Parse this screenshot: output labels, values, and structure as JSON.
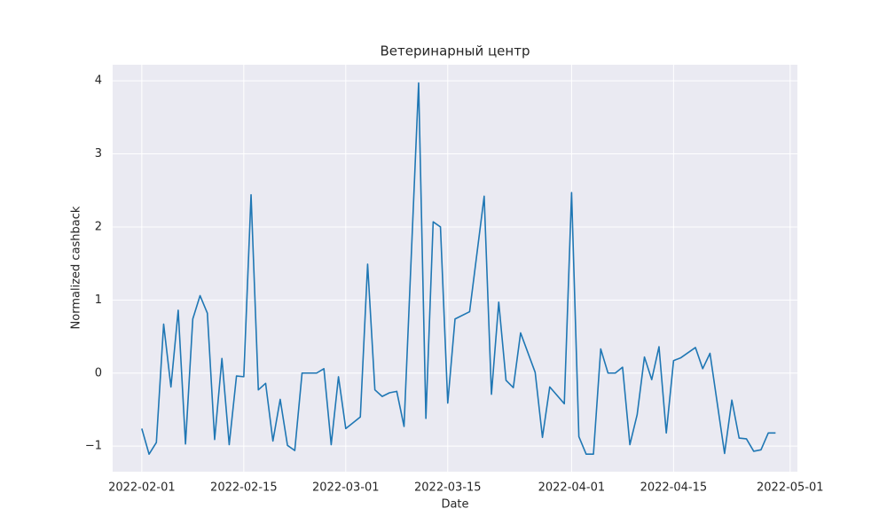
{
  "chart_data": {
    "type": "line",
    "title": "Ветеринарный центр",
    "xlabel": "Date",
    "ylabel": "Normalized cashback",
    "x": [
      "2022-02-01",
      "2022-02-02",
      "2022-02-03",
      "2022-02-04",
      "2022-02-05",
      "2022-02-06",
      "2022-02-07",
      "2022-02-08",
      "2022-02-09",
      "2022-02-10",
      "2022-02-11",
      "2022-02-12",
      "2022-02-13",
      "2022-02-14",
      "2022-02-15",
      "2022-02-16",
      "2022-02-17",
      "2022-02-18",
      "2022-02-19",
      "2022-02-20",
      "2022-02-21",
      "2022-02-22",
      "2022-02-23",
      "2022-02-24",
      "2022-02-25",
      "2022-02-26",
      "2022-02-27",
      "2022-02-28",
      "2022-03-01",
      "2022-03-03",
      "2022-03-04",
      "2022-03-05",
      "2022-03-06",
      "2022-03-07",
      "2022-03-08",
      "2022-03-09",
      "2022-03-11",
      "2022-03-12",
      "2022-03-13",
      "2022-03-14",
      "2022-03-15",
      "2022-03-16",
      "2022-03-18",
      "2022-03-20",
      "2022-03-21",
      "2022-03-22",
      "2022-03-23",
      "2022-03-24",
      "2022-03-25",
      "2022-03-27",
      "2022-03-28",
      "2022-03-29",
      "2022-03-31",
      "2022-04-01",
      "2022-04-02",
      "2022-04-03",
      "2022-04-04",
      "2022-04-05",
      "2022-04-06",
      "2022-04-07",
      "2022-04-08",
      "2022-04-09",
      "2022-04-10",
      "2022-04-11",
      "2022-04-12",
      "2022-04-13",
      "2022-04-14",
      "2022-04-15",
      "2022-04-16",
      "2022-04-18",
      "2022-04-19",
      "2022-04-20",
      "2022-04-22",
      "2022-04-23",
      "2022-04-24",
      "2022-04-25",
      "2022-04-26",
      "2022-04-27",
      "2022-04-28",
      "2022-04-29"
    ],
    "series": [
      {
        "name": "Normalized cashback",
        "color": "#1f77b4",
        "values": [
          -0.76,
          -1.11,
          -0.95,
          0.67,
          -0.19,
          0.86,
          -0.97,
          0.74,
          1.06,
          0.82,
          -0.91,
          0.2,
          -0.98,
          -0.04,
          -0.05,
          2.44,
          -0.23,
          -0.14,
          -0.93,
          -0.36,
          -0.99,
          -1.06,
          0.0,
          0.0,
          0.0,
          0.06,
          -0.98,
          -0.05,
          -0.76,
          -0.6,
          1.49,
          -0.23,
          -0.32,
          -0.27,
          -0.25,
          -0.73,
          3.97,
          -0.62,
          2.07,
          2.0,
          -0.41,
          0.74,
          0.84,
          2.42,
          -0.29,
          0.97,
          -0.1,
          -0.2,
          0.55,
          0.01,
          -0.88,
          -0.19,
          -0.42,
          2.47,
          -0.87,
          -1.11,
          -1.11,
          0.33,
          0.0,
          0.0,
          0.08,
          -0.98,
          -0.57,
          0.22,
          -0.09,
          0.36,
          -0.82,
          0.17,
          0.21,
          0.35,
          0.06,
          0.27,
          -1.1,
          -0.37,
          -0.89,
          -0.9,
          -1.07,
          -1.05,
          -0.82,
          -0.82
        ]
      }
    ],
    "xlim": [
      "2022-01-28",
      "2022-05-02"
    ],
    "xticks": [
      "2022-02-01",
      "2022-02-15",
      "2022-03-01",
      "2022-03-15",
      "2022-04-01",
      "2022-04-15",
      "2022-05-01"
    ],
    "ylim": [
      -1.35,
      4.22
    ],
    "yticks": [
      {
        "value": -1,
        "label": "−1"
      },
      0,
      1,
      2,
      3,
      4
    ],
    "grid": true
  }
}
